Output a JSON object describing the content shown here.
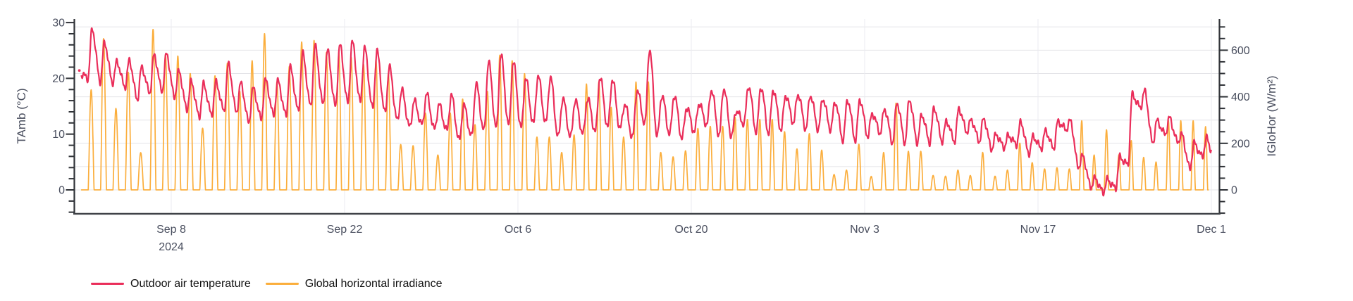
{
  "chart": {
    "background": "#ffffff",
    "left_axis": {
      "title": "TAmb (°C)",
      "major_ticks": [
        0,
        10,
        20,
        30
      ],
      "minor_step": 2,
      "range": [
        -4.3,
        30.7
      ],
      "unit": "°C"
    },
    "right_axis": {
      "title": "IGloHor (W/m²)",
      "major_ticks": [
        0,
        200,
        400,
        600
      ],
      "minor_step": 50,
      "range": [
        -101,
        737
      ],
      "unit": "W/m²"
    },
    "x_axis": {
      "ticks": [
        {
          "day": 7,
          "label": "Sep 8",
          "sub": "2024"
        },
        {
          "day": 21,
          "label": "Sep 22"
        },
        {
          "day": 35,
          "label": "Oct 6"
        },
        {
          "day": 49,
          "label": "Oct 20"
        },
        {
          "day": 63,
          "label": "Nov 3"
        },
        {
          "day": 77,
          "label": "Nov 17"
        },
        {
          "day": 91,
          "label": "Dec 1"
        }
      ]
    },
    "legend": [
      {
        "label": "Outdoor air temperature",
        "color": "#ea2e5a"
      },
      {
        "label": "Global horizontal irradiance",
        "color": "#fbae3c"
      }
    ],
    "colors": {
      "temperature_line": "#ea2e5a",
      "irradiance_line": "#fbae3c",
      "grid_horizontal": "#e4e4e8",
      "grid_vertical": "#ebebf0",
      "axis_spine": "#2f3237",
      "bottom_spine": "#3f4247",
      "tick_label": "#494e5e",
      "legend_text": "#111111"
    }
  },
  "chart_data": {
    "type": "line",
    "title": "",
    "xlabel": "",
    "ylabel_left": "TAmb (°C)",
    "ylabel_right": "IGloHor (W/m²)",
    "x_start_date": "2024-09-01",
    "x_end_date": "2024-12-01",
    "num_days": 91,
    "grid": "on",
    "legend_position": "bottom-left",
    "series": [
      {
        "name": "Outdoor air temperature",
        "axis": "left",
        "unit": "°C",
        "start_point": {
          "day": -0.42,
          "value": 21.4
        },
        "end_value": 7.3,
        "daily_max": [
          28.8,
          26.3,
          22.9,
          23.1,
          21.9,
          24.1,
          24.3,
          21.2,
          19.3,
          18.9,
          19.2,
          22.4,
          19.0,
          18.1,
          19.6,
          19.4,
          21.8,
          24.3,
          25.6,
          24.8,
          25.8,
          26.4,
          25.3,
          24.7,
          21.9,
          17.8,
          15.9,
          17.1,
          15.2,
          16.9,
          15.1,
          18.9,
          22.9,
          24.2,
          22.9,
          19.9,
          20.4,
          20.2,
          16.4,
          16.1,
          16.4,
          20.2,
          19.8,
          15.4,
          17.9,
          25.2,
          17.0,
          17.0,
          14.8,
          15.5,
          18.0,
          18.3,
          14.2,
          18.7,
          18.5,
          18.0,
          17.0,
          17.2,
          17.0,
          16.4,
          15.8,
          16.2,
          16.2,
          13.7,
          14.5,
          15.6,
          16.2,
          13.5,
          14.7,
          12.3,
          14.5,
          12.5,
          12.7,
          9.9,
          9.7,
          12.1,
          9.5,
          10.5,
          12.2,
          12.3,
          6.0,
          2.0,
          1.8,
          5.8,
          17.0,
          17.6,
          12.3,
          12.8,
          9.8,
          8.3,
          9.2
        ],
        "daily_min": [
          20.0,
          19.5,
          19.3,
          18.5,
          16.3,
          17.5,
          17.8,
          16.8,
          14.5,
          13.2,
          13.5,
          14.2,
          14.0,
          12.2,
          12.8,
          13.5,
          13.4,
          14.2,
          15.0,
          15.3,
          15.0,
          15.6,
          15.8,
          14.6,
          13.8,
          12.4,
          11.2,
          11.6,
          10.8,
          10.6,
          8.8,
          9.5,
          10.5,
          11.0,
          11.5,
          11.0,
          11.8,
          11.9,
          9.4,
          9.4,
          10.0,
          10.4,
          11.2,
          10.9,
          9.4,
          11.9,
          9.6,
          10.0,
          9.2,
          10.4,
          11.7,
          9.8,
          9.6,
          11.9,
          10.4,
          10.2,
          10.8,
          12.1,
          11.0,
          10.9,
          10.9,
          9.0,
          9.0,
          9.7,
          10.3,
          8.6,
          8.6,
          8.6,
          8.6,
          8.8,
          8.8,
          10.5,
          8.8,
          7.4,
          7.7,
          8.2,
          6.6,
          7.5,
          7.5,
          10.9,
          4.2,
          0.6,
          -0.4,
          0.3,
          4.5,
          14.8,
          8.5,
          10.0,
          8.7,
          3.9,
          6.0
        ]
      },
      {
        "name": "Global horizontal irradiance",
        "axis": "right",
        "unit": "W/m²",
        "daily_peak": [
          430,
          650,
          350,
          505,
          160,
          690,
          580,
          575,
          500,
          265,
          490,
          545,
          424,
          555,
          672,
          464,
          530,
          636,
          642,
          590,
          591,
          570,
          540,
          560,
          500,
          195,
          190,
          330,
          150,
          330,
          390,
          280,
          424,
          579,
          555,
          500,
          227,
          227,
          161,
          236,
          455,
          464,
          355,
          227,
          464,
          464,
          161,
          142,
          168,
          264,
          273,
          273,
          312,
          303,
          303,
          303,
          250,
          176,
          242,
          171,
          66,
          85,
          196,
          58,
          161,
          373,
          166,
          166,
          62,
          59,
          85,
          62,
          161,
          59,
          85,
          201,
          117,
          90,
          95,
          90,
          297,
          150,
          258,
          151,
          212,
          140,
          120,
          297,
          297,
          297,
          272
        ],
        "daylight_halfwidth_hours_start": 5.7,
        "daylight_halfwidth_hours_end": 4.1,
        "solar_noon_hour": 12.8
      }
    ]
  }
}
